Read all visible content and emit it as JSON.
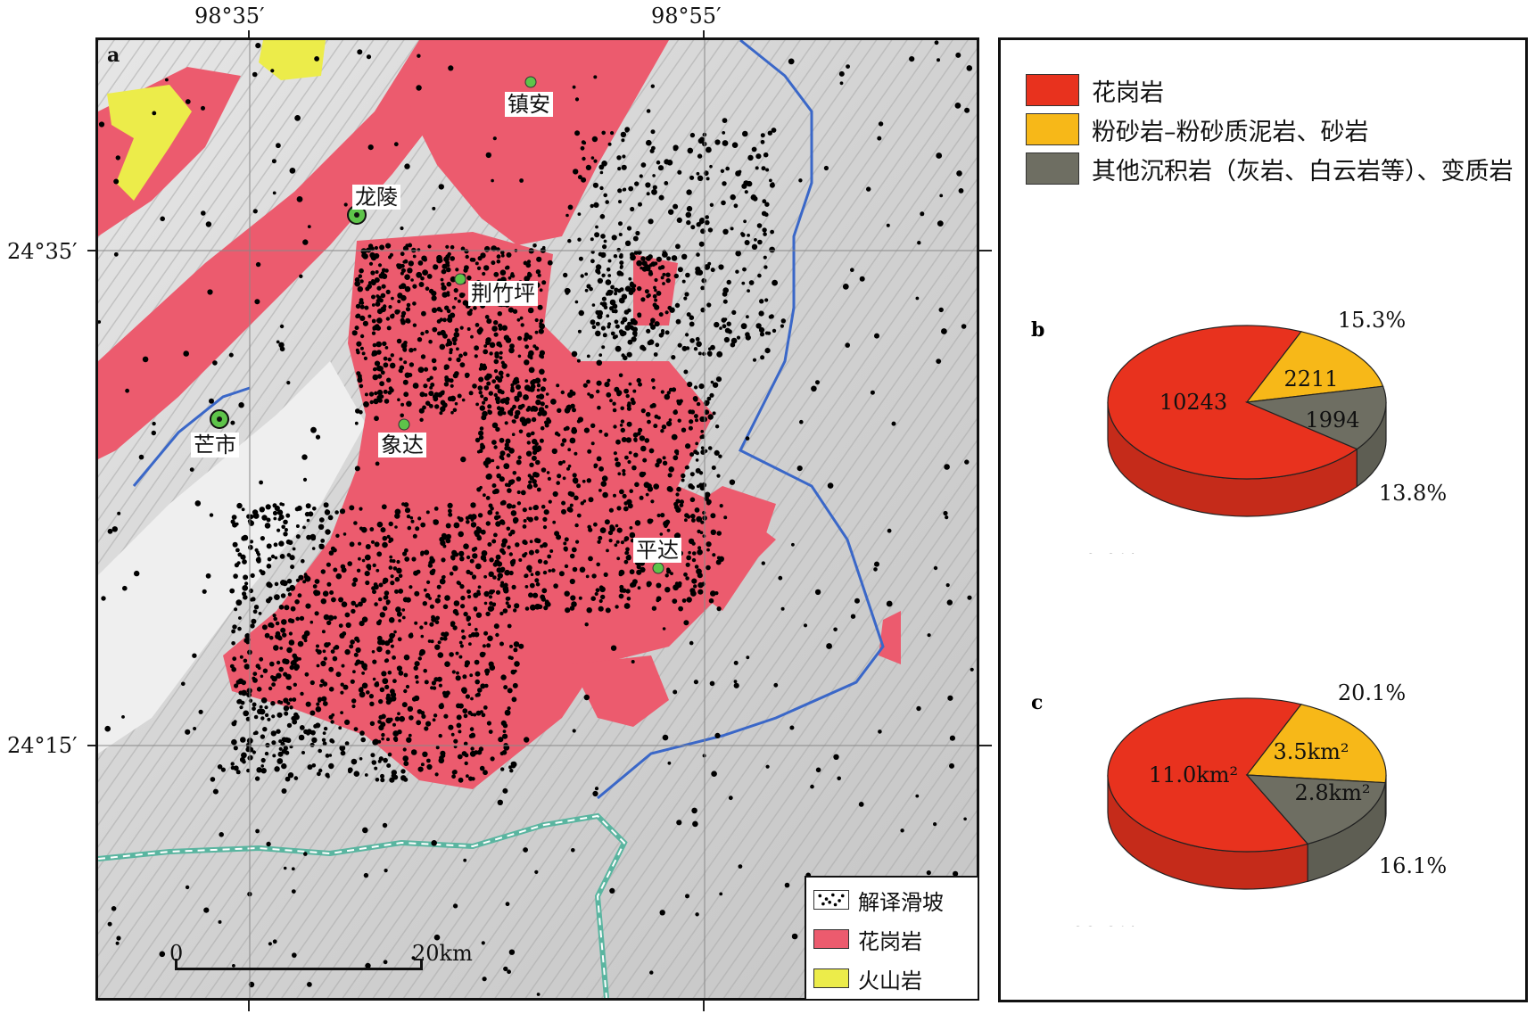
{
  "coordinates": {
    "lon_labels": [
      "98°35′",
      "98°55′"
    ],
    "lat_labels": [
      "24°35′",
      "24°15′"
    ]
  },
  "map": {
    "panel_label": "a",
    "places": [
      {
        "id": "zhenan",
        "name": "镇安",
        "type": "town"
      },
      {
        "id": "longling",
        "name": "龙陵",
        "type": "city"
      },
      {
        "id": "jingzhuping",
        "name": "荆竹坪",
        "type": "town"
      },
      {
        "id": "mangshi",
        "name": "芒市",
        "type": "city"
      },
      {
        "id": "xiangda",
        "name": "象达",
        "type": "town"
      },
      {
        "id": "pingda",
        "name": "平达",
        "type": "town"
      }
    ],
    "scale_bar": {
      "start": "0",
      "end": "20km"
    },
    "legend": [
      {
        "label": "解译滑坡",
        "icon": "landslide-dots-icon"
      },
      {
        "label": "花岗岩",
        "color": "#ec5b6e"
      },
      {
        "label": "火山岩",
        "color": "#ecec4a"
      }
    ],
    "colors": {
      "granite": "#ec5b6e",
      "volcanic": "#ecec4a",
      "river": "#3a67c8",
      "border": "#5ab5a0",
      "landslide": "#000000",
      "town": "#5ec44a"
    }
  },
  "lithology_legend": [
    {
      "label": "花岗岩",
      "color": "#e8321e"
    },
    {
      "label": "粉砂岩–粉砂质泥岩、砂岩",
      "color": "#f7b818"
    },
    {
      "label": "其他沉积岩（灰岩、白云岩等）、变质岩",
      "color": "#6e6e62"
    }
  ],
  "chart_data": [
    {
      "type": "pie",
      "panel_label": "b",
      "slices": [
        {
          "label": "10243",
          "value": 10243,
          "percent": "70.9%",
          "color": "#e8321e"
        },
        {
          "label": "2211",
          "value": 2211,
          "percent": "15.3%",
          "color": "#f7b818"
        },
        {
          "label": "1994",
          "value": 1994,
          "percent": "13.8%",
          "color": "#6e6e62"
        }
      ]
    },
    {
      "type": "pie",
      "panel_label": "c",
      "slices": [
        {
          "label": "11.0km²",
          "value": 11.0,
          "percent": "63.8%",
          "color": "#e8321e"
        },
        {
          "label": "3.5km²",
          "value": 3.5,
          "percent": "20.1%",
          "color": "#f7b818"
        },
        {
          "label": "2.8km²",
          "value": 2.8,
          "percent": "16.1%",
          "color": "#6e6e62"
        }
      ]
    }
  ]
}
